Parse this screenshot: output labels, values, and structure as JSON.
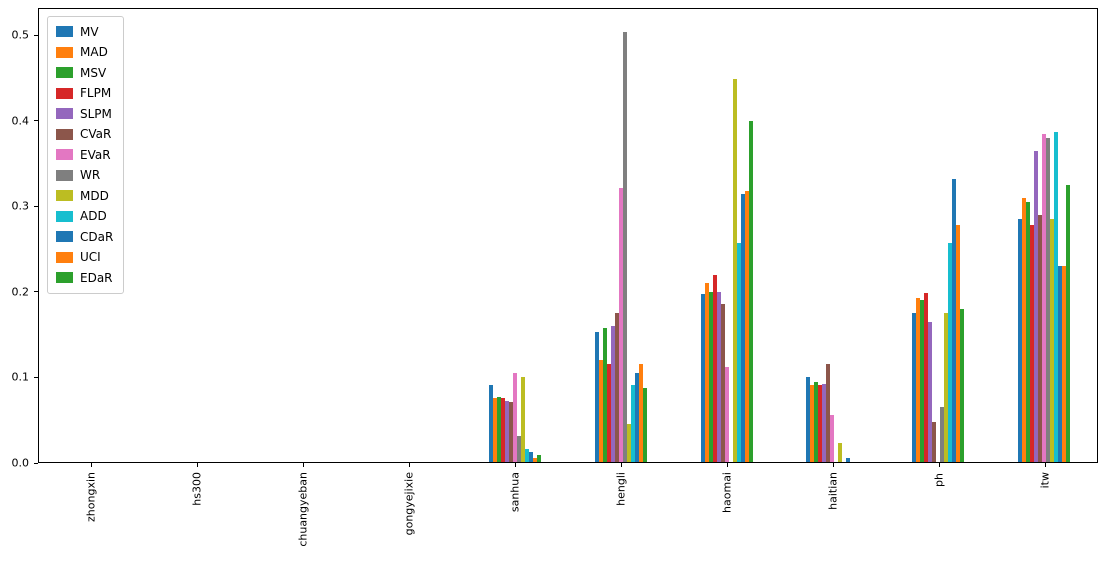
{
  "figure": {
    "background": "#ffffff"
  },
  "chart_data": {
    "type": "bar",
    "title": "",
    "xlabel": "",
    "ylabel": "",
    "grid": false,
    "legend_position": "upper left",
    "ylim": [
      0,
      0.532
    ],
    "yticks": [
      {
        "value": 0.0,
        "label": "0.0"
      },
      {
        "value": 0.1,
        "label": "0.1"
      },
      {
        "value": 0.2,
        "label": "0.2"
      },
      {
        "value": 0.3,
        "label": "0.3"
      },
      {
        "value": 0.4,
        "label": "0.4"
      },
      {
        "value": 0.5,
        "label": "0.5"
      }
    ],
    "categories": [
      "zhongxin",
      "hs300",
      "chuangyeban",
      "gongyejixie",
      "sanhua",
      "hengli",
      "haomai",
      "haitian",
      "ph",
      "itw"
    ],
    "series": [
      {
        "name": "MV",
        "color": "#1f77b4",
        "values": [
          0,
          0,
          0,
          0,
          0.09,
          0.153,
          0.197,
          0.1,
          0.175,
          0.285
        ]
      },
      {
        "name": "MAD",
        "color": "#ff7f0e",
        "values": [
          0,
          0,
          0,
          0,
          0.075,
          0.12,
          0.21,
          0.09,
          0.193,
          0.31
        ]
      },
      {
        "name": "MSV",
        "color": "#2ca02c",
        "values": [
          0,
          0,
          0,
          0,
          0.076,
          0.157,
          0.2,
          0.094,
          0.19,
          0.305
        ]
      },
      {
        "name": "FLPM",
        "color": "#d62728",
        "values": [
          0,
          0,
          0,
          0,
          0.075,
          0.115,
          0.22,
          0.09,
          0.198,
          0.278
        ]
      },
      {
        "name": "SLPM",
        "color": "#9467bd",
        "values": [
          0,
          0,
          0,
          0,
          0.072,
          0.16,
          0.2,
          0.092,
          0.165,
          0.365
        ]
      },
      {
        "name": "CVaR",
        "color": "#8c564b",
        "values": [
          0,
          0,
          0,
          0,
          0.07,
          0.175,
          0.185,
          0.115,
          0.047,
          0.29
        ]
      },
      {
        "name": "EVaR",
        "color": "#e377c2",
        "values": [
          0,
          0,
          0,
          0,
          0.105,
          0.322,
          0.112,
          0.055,
          0,
          0.385
        ]
      },
      {
        "name": "WR",
        "color": "#7f7f7f",
        "values": [
          0,
          0,
          0,
          0,
          0.03,
          0.505,
          0,
          0,
          0.065,
          0.38
        ]
      },
      {
        "name": "MDD",
        "color": "#bcbd22",
        "values": [
          0,
          0,
          0,
          0,
          0.1,
          0.045,
          0.45,
          0.022,
          0.175,
          0.285
        ]
      },
      {
        "name": "ADD",
        "color": "#17becf",
        "values": [
          0,
          0,
          0,
          0,
          0.015,
          0.09,
          0.257,
          0,
          0.257,
          0.387
        ]
      },
      {
        "name": "CDaR",
        "color": "#1f77b4",
        "values": [
          0,
          0,
          0,
          0,
          0.012,
          0.105,
          0.315,
          0.005,
          0.332,
          0.23
        ]
      },
      {
        "name": "UCI",
        "color": "#ff7f0e",
        "values": [
          0,
          0,
          0,
          0,
          0.005,
          0.115,
          0.318,
          0,
          0.278,
          0.23
        ]
      },
      {
        "name": "EDaR",
        "color": "#2ca02c",
        "values": [
          0,
          0,
          0,
          0,
          0.008,
          0.087,
          0.4,
          0,
          0.18,
          0.325
        ]
      }
    ]
  }
}
